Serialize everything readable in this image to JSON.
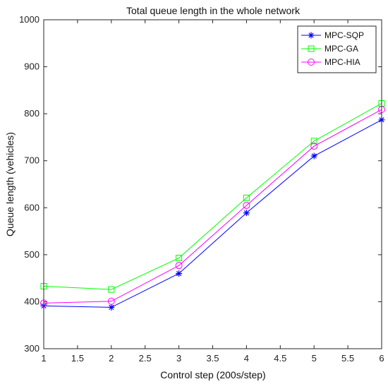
{
  "chart_data": {
    "type": "line",
    "title": "Total queue length in the whole network",
    "xlabel": "Control step (200s/step)",
    "ylabel": "Queue length (vehicles)",
    "xlim": [
      1,
      6
    ],
    "ylim": [
      300,
      1000
    ],
    "xticks": [
      "1",
      "1.5",
      "2",
      "2.5",
      "3",
      "3.5",
      "4",
      "4.5",
      "5",
      "5.5",
      "6"
    ],
    "yticks": [
      "300",
      "400",
      "500",
      "600",
      "700",
      "800",
      "900",
      "1000"
    ],
    "x": [
      1,
      2,
      3,
      4,
      5,
      6
    ],
    "series": [
      {
        "name": "MPC-SQP",
        "values": [
          391,
          388,
          460,
          589,
          710,
          787
        ],
        "color": "#0000ff",
        "marker": "asterisk"
      },
      {
        "name": "MPC-GA",
        "values": [
          433,
          426,
          493,
          621,
          742,
          822
        ],
        "color": "#00ff00",
        "marker": "square"
      },
      {
        "name": "MPC-HIA",
        "values": [
          397,
          401,
          477,
          605,
          731,
          809
        ],
        "color": "#ff00ff",
        "marker": "circle"
      }
    ],
    "legend_position": "top-right",
    "grid": false
  }
}
